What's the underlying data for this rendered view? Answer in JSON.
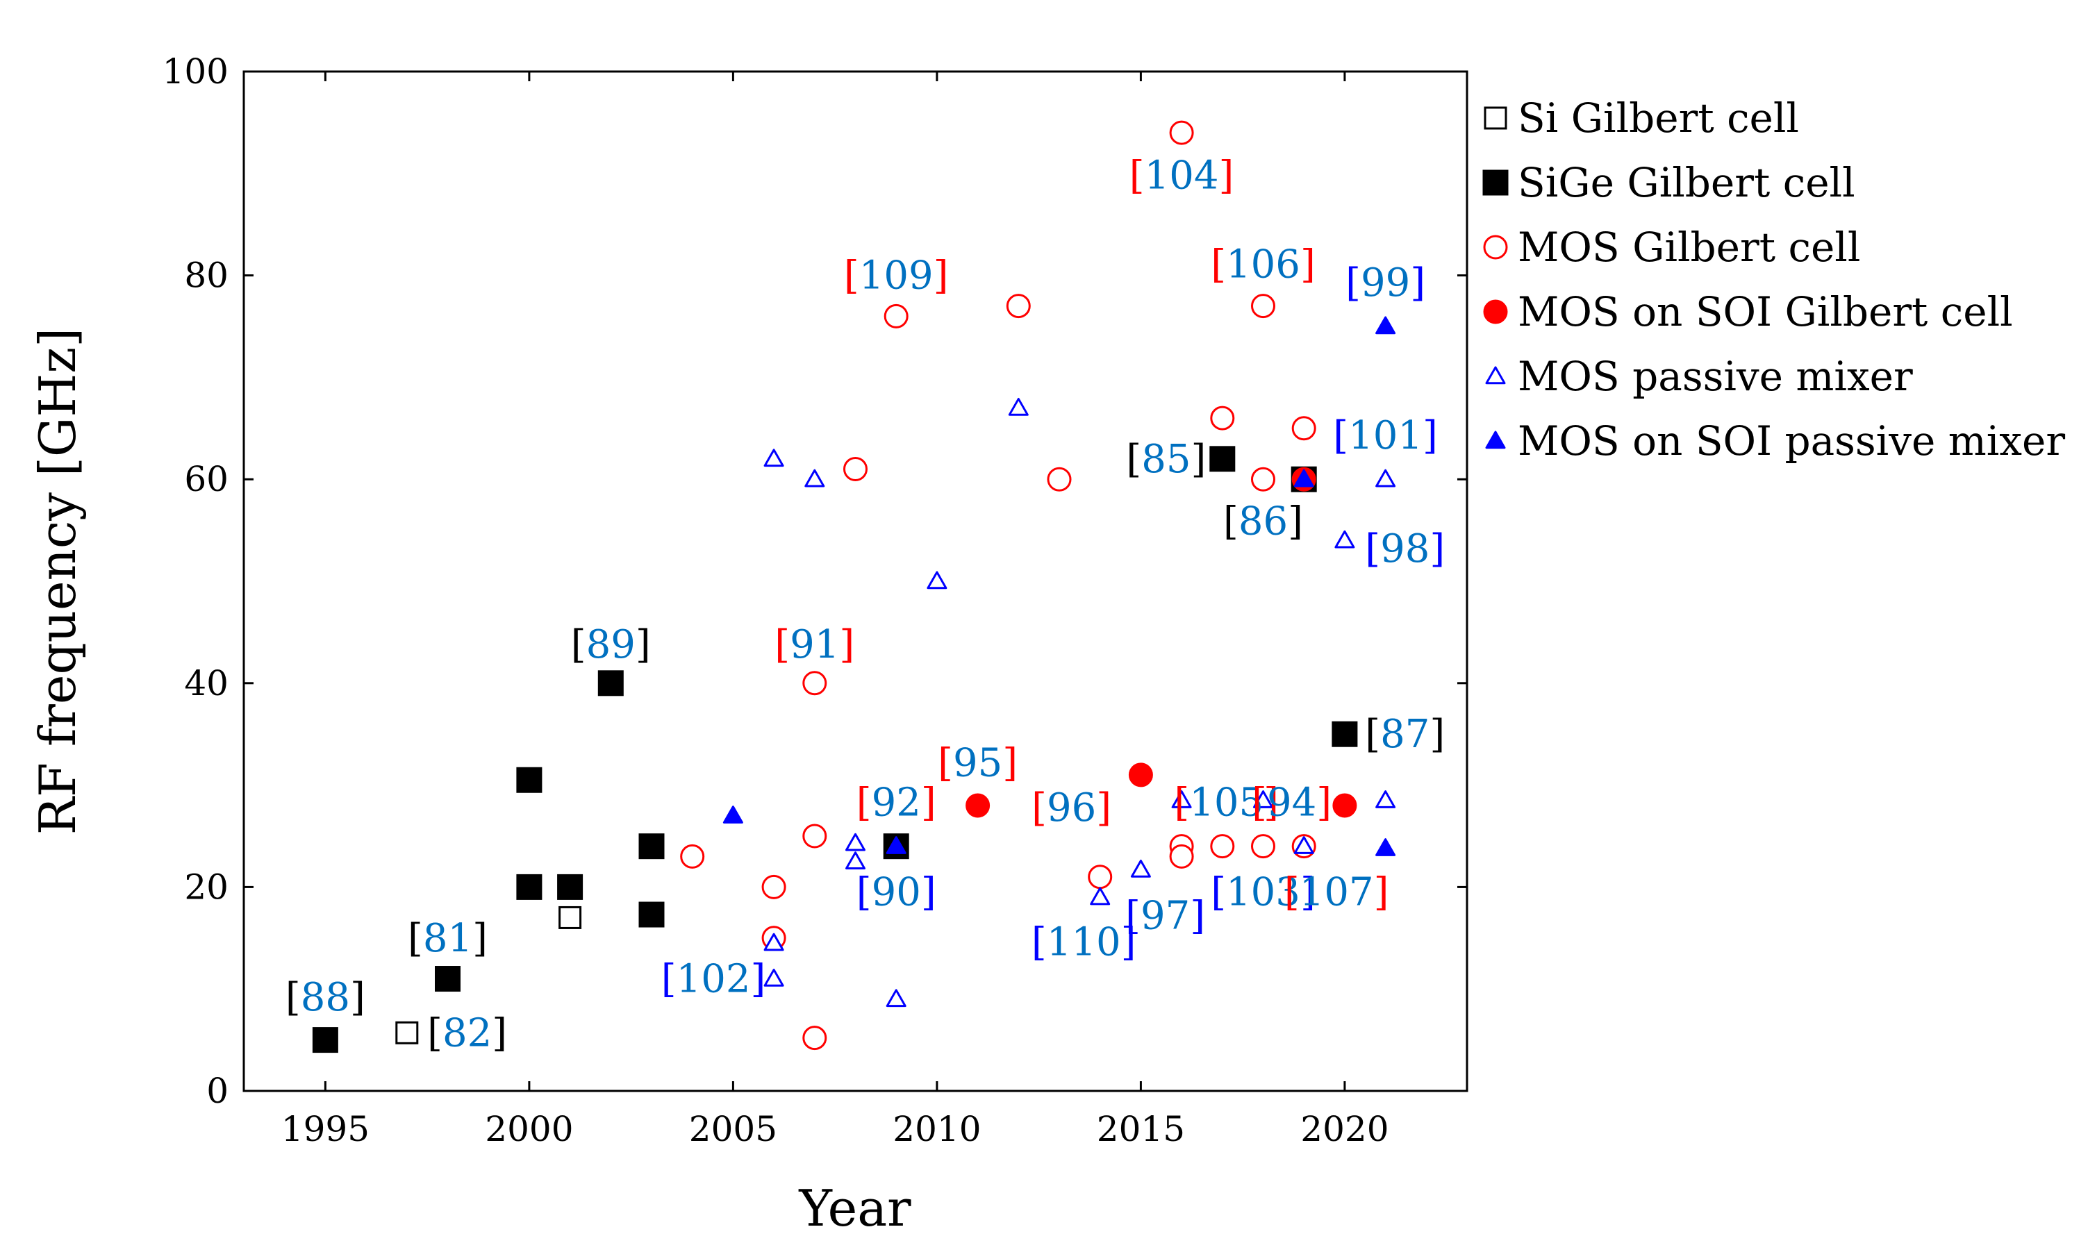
{
  "chart_data": {
    "type": "scatter",
    "xlabel": "Year",
    "ylabel": "RF frequency [GHz]",
    "xlim": [
      1993,
      2023
    ],
    "ylim": [
      0,
      100
    ],
    "xticks": [
      1995,
      2000,
      2005,
      2010,
      2015,
      2020
    ],
    "yticks": [
      0,
      20,
      40,
      60,
      80,
      100
    ],
    "legend_position": "outside-right",
    "colors": {
      "black": "#000000",
      "red": "#ff0000",
      "blue": "#0000ff",
      "cite": "#0070c0"
    },
    "series": [
      {
        "name": "Si Gilbert cell",
        "marker": "square-open",
        "color": "#000000",
        "points": [
          [
            1997,
            5.7
          ],
          [
            2001,
            17
          ]
        ]
      },
      {
        "name": "SiGe Gilbert cell",
        "marker": "square-filled",
        "color": "#000000",
        "points": [
          [
            1995,
            5
          ],
          [
            1998,
            11
          ],
          [
            2000,
            30.5
          ],
          [
            2000,
            20
          ],
          [
            2001,
            20
          ],
          [
            2002,
            40
          ],
          [
            2003,
            24
          ],
          [
            2003,
            17.3
          ],
          [
            2009,
            24
          ],
          [
            2017,
            62
          ],
          [
            2019,
            60
          ],
          [
            2020,
            35
          ]
        ]
      },
      {
        "name": "MOS Gilbert cell",
        "marker": "circle-open",
        "color": "#ff0000",
        "points": [
          [
            2004,
            23
          ],
          [
            2006,
            20
          ],
          [
            2006,
            15
          ],
          [
            2007,
            25
          ],
          [
            2007,
            40
          ],
          [
            2007,
            5.2
          ],
          [
            2008,
            61
          ],
          [
            2009,
            76
          ],
          [
            2012,
            77
          ],
          [
            2013,
            60
          ],
          [
            2014,
            21
          ],
          [
            2016,
            94
          ],
          [
            2016,
            24
          ],
          [
            2016,
            23
          ],
          [
            2017,
            66
          ],
          [
            2017,
            24
          ],
          [
            2018,
            77
          ],
          [
            2018,
            60
          ],
          [
            2018,
            24
          ],
          [
            2019,
            65
          ],
          [
            2019,
            24
          ]
        ]
      },
      {
        "name": "MOS on SOI Gilbert cell",
        "marker": "circle-filled",
        "color": "#ff0000",
        "points": [
          [
            2011,
            28
          ],
          [
            2015,
            31
          ],
          [
            2019,
            60
          ],
          [
            2020,
            28
          ]
        ]
      },
      {
        "name": "MOS passive mixer",
        "marker": "triangle-open",
        "color": "#0000ff",
        "points": [
          [
            2006,
            62
          ],
          [
            2006,
            14.5
          ],
          [
            2006,
            11
          ],
          [
            2007,
            60
          ],
          [
            2008,
            24.3
          ],
          [
            2008,
            22.5
          ],
          [
            2009,
            9
          ],
          [
            2010,
            50
          ],
          [
            2012,
            67
          ],
          [
            2014,
            19
          ],
          [
            2015,
            21.7
          ],
          [
            2016,
            28.5
          ],
          [
            2018,
            28.5
          ],
          [
            2019,
            24
          ],
          [
            2020,
            54
          ],
          [
            2021,
            60
          ],
          [
            2021,
            28.5
          ]
        ]
      },
      {
        "name": "MOS on SOI passive mixer",
        "marker": "triangle-filled",
        "color": "#0000ff",
        "points": [
          [
            2005,
            27
          ],
          [
            2009,
            24
          ],
          [
            2019,
            60
          ],
          [
            2021,
            75
          ],
          [
            2021,
            23.8
          ]
        ]
      }
    ],
    "annotations": [
      {
        "num": "88",
        "bracket": "#000000",
        "x": 1995,
        "y": 9.2,
        "anchor": "middle"
      },
      {
        "num": "82",
        "bracket": "#000000",
        "x": 1997.5,
        "y": 5.7,
        "anchor": "start"
      },
      {
        "num": "81",
        "bracket": "#000000",
        "x": 1998,
        "y": 15,
        "anchor": "middle"
      },
      {
        "num": "89",
        "bracket": "#000000",
        "x": 2002,
        "y": 43.8,
        "anchor": "middle"
      },
      {
        "num": "102",
        "bracket": "#0000ff",
        "x": 2005.8,
        "y": 11,
        "anchor": "end"
      },
      {
        "num": "91",
        "bracket": "#ff0000",
        "x": 2007,
        "y": 43.8,
        "anchor": "middle"
      },
      {
        "num": "109",
        "bracket": "#ff0000",
        "x": 2009,
        "y": 80,
        "anchor": "middle"
      },
      {
        "num": "92",
        "bracket": "#ff0000",
        "x": 2009,
        "y": 28.3,
        "anchor": "middle"
      },
      {
        "num": "90",
        "bracket": "#0000ff",
        "x": 2009,
        "y": 19.5,
        "anchor": "middle"
      },
      {
        "num": "95",
        "bracket": "#ff0000",
        "x": 2011,
        "y": 32.2,
        "anchor": "middle"
      },
      {
        "num": "110",
        "bracket": "#0000ff",
        "x": 2013.6,
        "y": 14.6,
        "anchor": "middle"
      },
      {
        "num": "96",
        "bracket": "#ff0000",
        "x": 2013.3,
        "y": 27.8,
        "anchor": "middle"
      },
      {
        "num": "97",
        "bracket": "#0000ff",
        "x": 2015.6,
        "y": 17.2,
        "anchor": "middle"
      },
      {
        "num": "104",
        "bracket": "#ff0000",
        "x": 2016,
        "y": 89.8,
        "anchor": "middle"
      },
      {
        "num": "105",
        "bracket": "#ff0000",
        "x": 2017.1,
        "y": 28.3,
        "anchor": "middle"
      },
      {
        "num": "85",
        "bracket": "#000000",
        "x": 2016.6,
        "y": 62,
        "anchor": "end"
      },
      {
        "num": "106",
        "bracket": "#ff0000",
        "x": 2018,
        "y": 81.1,
        "anchor": "middle"
      },
      {
        "num": "86",
        "bracket": "#000000",
        "x": 2018,
        "y": 55.9,
        "anchor": "middle"
      },
      {
        "num": "94",
        "bracket": "#ff0000",
        "x": 2018.7,
        "y": 28.3,
        "anchor": "middle"
      },
      {
        "num": "103",
        "bracket": "#0000ff",
        "x": 2018,
        "y": 19.5,
        "anchor": "middle"
      },
      {
        "num": "107",
        "bracket": "#ff0000",
        "x": 2019.8,
        "y": 19.5,
        "anchor": "middle"
      },
      {
        "num": "99",
        "bracket": "#0000ff",
        "x": 2021,
        "y": 79.3,
        "anchor": "middle"
      },
      {
        "num": "101",
        "bracket": "#0000ff",
        "x": 2021,
        "y": 64.3,
        "anchor": "middle"
      },
      {
        "num": "98",
        "bracket": "#0000ff",
        "x": 2020.5,
        "y": 53.2,
        "anchor": "start"
      },
      {
        "num": "87",
        "bracket": "#000000",
        "x": 2020.5,
        "y": 35,
        "anchor": "start"
      }
    ]
  }
}
